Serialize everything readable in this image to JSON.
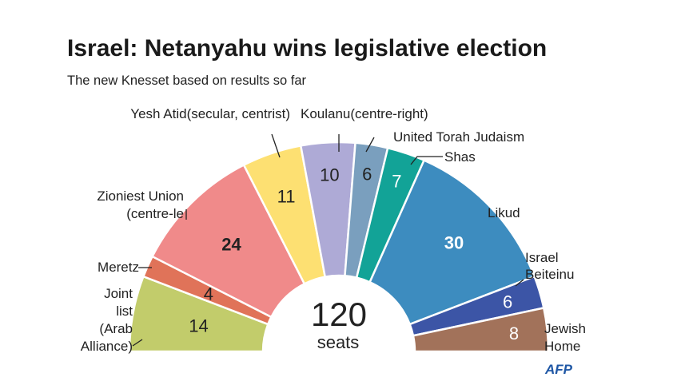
{
  "title": "Israel: Netanyahu wins legislative election",
  "subtitle": "The new Knesset based on results so far",
  "total_label": "120",
  "total_unit": "seats",
  "logo": "AFP",
  "chart_data": {
    "type": "pie",
    "variant": "semicircle-parliament",
    "total": 120,
    "slices": [
      {
        "label": "Joint list (Arab Alliance)",
        "value": 14,
        "color": "#c2cc6b"
      },
      {
        "label": "Meretz",
        "value": 4,
        "color": "#e07359"
      },
      {
        "label": "Zioniest Union (centre-le",
        "value": 24,
        "color": "#f08a8a"
      },
      {
        "label": "Yesh Atid(secular, centrist)",
        "value": 11,
        "color": "#fde072"
      },
      {
        "label": "Koulanu(centre-right)",
        "value": 10,
        "color": "#aeaad6"
      },
      {
        "label": "United Torah Judaism",
        "value": 6,
        "color": "#7a9fbe"
      },
      {
        "label": "Shas",
        "value": 7,
        "color": "#12a397"
      },
      {
        "label": "Likud",
        "value": 30,
        "color": "#3d8cbf"
      },
      {
        "label": "Israel Beiteinu",
        "value": 6,
        "color": "#3c55a6"
      },
      {
        "label": "Jewish Home",
        "value": 8,
        "color": "#a2725a"
      }
    ]
  },
  "party_labels": [
    {
      "lines": [
        "Joint",
        "list",
        "(Arab",
        "Alliance)"
      ]
    },
    {
      "lines": [
        "Meretz"
      ]
    },
    {
      "lines": [
        "Zioniest Union",
        "(centre-le"
      ]
    },
    {
      "lines": [
        "Yesh Atid(secular, centrist)"
      ]
    },
    {
      "lines": [
        "Koulanu(centre-right)"
      ]
    },
    {
      "lines": [
        "United Torah Judaism"
      ]
    },
    {
      "lines": [
        "Shas"
      ]
    },
    {
      "lines": [
        "Likud"
      ]
    },
    {
      "lines": [
        "Israel",
        "Beiteinu"
      ]
    },
    {
      "lines": [
        "Jewish",
        "Home"
      ]
    }
  ]
}
